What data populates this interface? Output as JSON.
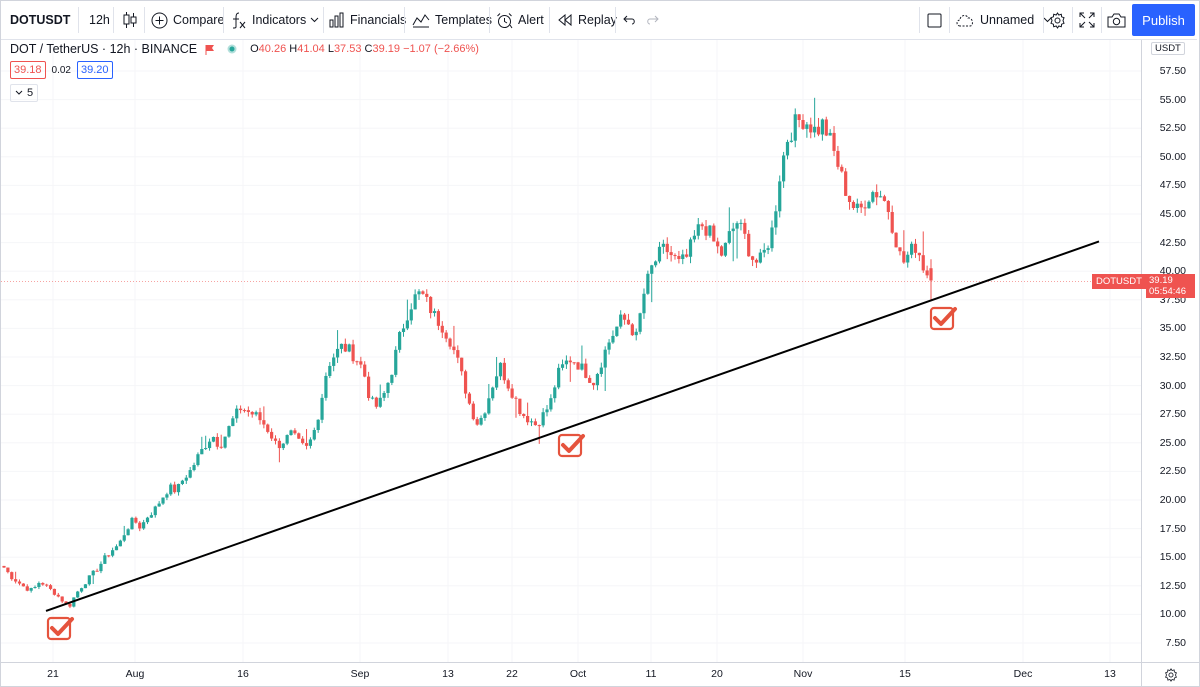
{
  "toolbar": {
    "symbol": "DOTUSDT",
    "interval": "12h",
    "compare_label": "Compare",
    "indicators_label": "Indicators",
    "financials_label": "Financials",
    "templates_label": "Templates",
    "alert_label": "Alert",
    "replay_label": "Replay",
    "layout_name": "Unnamed",
    "publish_label": "Publish"
  },
  "legend": {
    "title": "DOT / TetherUS · 12h · BINANCE",
    "o_key": "O",
    "o_val": "40.26",
    "h_key": "H",
    "h_val": "41.04",
    "l_key": "L",
    "l_val": "37.53",
    "c_key": "C",
    "c_val": "39.19",
    "change": "−1.07 (−2.66%)",
    "sell": "39.18",
    "spread": "0.02",
    "buy": "39.20",
    "indicator_count": "5"
  },
  "price_axis": {
    "unit": "USDT",
    "ticks": [
      "57.50",
      "55.00",
      "52.50",
      "50.00",
      "47.50",
      "45.00",
      "42.50",
      "40.00",
      "37.50",
      "35.00",
      "32.50",
      "30.00",
      "27.50",
      "25.00",
      "22.50",
      "20.00",
      "17.50",
      "15.00",
      "12.50",
      "10.00",
      "7.50"
    ],
    "last_price": "39.19",
    "countdown": "05:54:46",
    "symbol_tag": "DOTUSDT"
  },
  "time_axis": {
    "ticks": [
      "21",
      "Aug",
      "16",
      "Sep",
      "13",
      "22",
      "Oct",
      "11",
      "20",
      "Nov",
      "15",
      "Dec",
      "13"
    ]
  },
  "colors": {
    "up": "#26a69a",
    "down": "#ef5350",
    "trendline": "#000000",
    "check": "#e5533d",
    "accent": "#2962ff"
  },
  "chart_data": {
    "type": "candlestick",
    "title": "DOT / TetherUS · 12h · BINANCE",
    "ylim": [
      6.25,
      61.25
    ],
    "y_ticks": [
      7.5,
      10,
      12.5,
      15,
      17.5,
      20,
      22.5,
      25,
      27.5,
      30,
      32.5,
      35,
      37.5,
      40,
      42.5,
      45,
      47.5,
      50,
      52.5,
      55,
      57.5
    ],
    "x_tick_labels": [
      "21",
      "Aug",
      "16",
      "Sep",
      "13",
      "22",
      "Oct",
      "11",
      "20",
      "Nov",
      "15",
      "Dec",
      "13"
    ],
    "close_path": [
      14.1,
      13.3,
      12.8,
      12.3,
      12.1,
      12.9,
      12.4,
      11.9,
      11.3,
      10.6,
      11.8,
      12.6,
      13.3,
      14.0,
      14.9,
      15.6,
      16.1,
      17.4,
      18.3,
      17.6,
      18.6,
      19.2,
      20.2,
      21.1,
      20.8,
      21.9,
      22.6,
      23.8,
      24.8,
      25.7,
      24.7,
      25.9,
      27.2,
      28.1,
      27.7,
      27.4,
      26.8,
      25.9,
      24.7,
      25.2,
      25.8,
      25.0,
      24.4,
      25.6,
      28.2,
      31.7,
      32.7,
      33.4,
      33.1,
      32.4,
      31.4,
      28.6,
      28.1,
      29.4,
      31.4,
      34.1,
      36.1,
      37.6,
      38.1,
      37.1,
      36.0,
      35.2,
      34.1,
      32.4,
      30.2,
      27.9,
      26.6,
      28.1,
      30.1,
      31.8,
      30.3,
      29.1,
      27.6,
      27.1,
      26.6,
      27.4,
      28.4,
      30.9,
      31.9,
      32.4,
      31.8,
      31.1,
      30.3,
      31.9,
      33.6,
      34.8,
      35.9,
      35.4,
      34.2,
      37.9,
      40.1,
      41.3,
      42.0,
      41.3,
      40.6,
      41.2,
      42.8,
      44.1,
      43.6,
      42.2,
      41.4,
      43.2,
      44.3,
      43.1,
      41.3,
      40.6,
      41.9,
      43.8,
      48.6,
      51.6,
      52.8,
      53.4,
      52.9,
      52.2,
      52.9,
      51.3,
      49.4,
      47.3,
      45.8,
      45.1,
      46.4,
      47.0,
      46.7,
      45.6,
      43.1,
      40.6,
      41.6,
      42.3,
      40.3,
      39.19
    ],
    "trendline": {
      "start": {
        "x": "Jul 20",
        "y": 10.3
      },
      "end": {
        "x": "Dec 8",
        "y": 42.6
      }
    },
    "markers": [
      "check",
      "check",
      "check"
    ]
  }
}
